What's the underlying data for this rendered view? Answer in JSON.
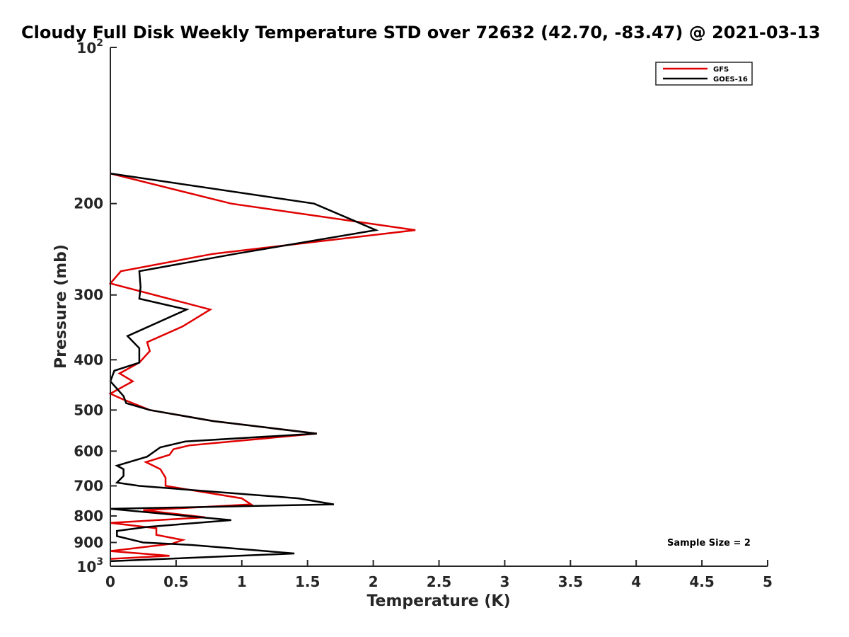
{
  "chart_data": {
    "type": "line",
    "title": "Cloudy Full Disk Weekly Temperature STD over 72632 (42.70, -83.47) @ 2021-03-13",
    "xlabel": "Temperature (K)",
    "ylabel": "Pressure (mb)",
    "xlim": [
      0,
      5
    ],
    "ylim": [
      100,
      1000
    ],
    "yscale": "log",
    "yreversed": true,
    "grid": false,
    "legend_position": "top-right",
    "x_ticks": [
      "0",
      "0.5",
      "1",
      "1.5",
      "2",
      "2.5",
      "3",
      "3.5",
      "4",
      "4.5",
      "5"
    ],
    "y_ticks": [
      {
        "value": 100,
        "base": "10",
        "exp": "2"
      },
      {
        "value": 200,
        "label": "200"
      },
      {
        "value": 300,
        "label": "300"
      },
      {
        "value": 400,
        "label": "400"
      },
      {
        "value": 500,
        "label": "500"
      },
      {
        "value": 600,
        "label": "600"
      },
      {
        "value": 700,
        "label": "700"
      },
      {
        "value": 800,
        "label": "800"
      },
      {
        "value": 900,
        "label": "900"
      },
      {
        "value": 1000,
        "base": "10",
        "exp": "3"
      }
    ],
    "annotation": "Sample Size = 2",
    "series": [
      {
        "name": "GFS",
        "color": "#e00000",
        "points": [
          [
            0.0,
            175
          ],
          [
            0.92,
            200
          ],
          [
            2.32,
            225
          ],
          [
            0.78,
            250
          ],
          [
            0.08,
            270
          ],
          [
            0.0,
            285
          ],
          [
            0.76,
            320
          ],
          [
            0.55,
            345
          ],
          [
            0.28,
            370
          ],
          [
            0.3,
            385
          ],
          [
            0.22,
            405
          ],
          [
            0.07,
            425
          ],
          [
            0.17,
            440
          ],
          [
            0.0,
            465
          ],
          [
            0.08,
            475
          ],
          [
            0.3,
            500
          ],
          [
            0.78,
            525
          ],
          [
            1.57,
            555
          ],
          [
            0.6,
            585
          ],
          [
            0.48,
            595
          ],
          [
            0.45,
            610
          ],
          [
            0.27,
            630
          ],
          [
            0.38,
            650
          ],
          [
            0.42,
            675
          ],
          [
            0.42,
            700
          ],
          [
            1.0,
            740
          ],
          [
            1.07,
            760
          ],
          [
            0.25,
            780
          ],
          [
            0.72,
            805
          ],
          [
            0.0,
            825
          ],
          [
            0.35,
            845
          ],
          [
            0.35,
            870
          ],
          [
            0.55,
            890
          ],
          [
            0.47,
            905
          ],
          [
            0.0,
            935
          ],
          [
            0.45,
            955
          ],
          [
            0.0,
            968
          ]
        ]
      },
      {
        "name": "GOES-16",
        "color": "#000000",
        "points": [
          [
            0.0,
            175
          ],
          [
            1.55,
            200
          ],
          [
            2.02,
            225
          ],
          [
            0.95,
            250
          ],
          [
            0.22,
            270
          ],
          [
            0.23,
            290
          ],
          [
            0.22,
            305
          ],
          [
            0.58,
            320
          ],
          [
            0.13,
            360
          ],
          [
            0.22,
            380
          ],
          [
            0.22,
            405
          ],
          [
            0.03,
            420
          ],
          [
            0.0,
            440
          ],
          [
            0.1,
            470
          ],
          [
            0.12,
            485
          ],
          [
            0.3,
            500
          ],
          [
            0.78,
            525
          ],
          [
            1.57,
            555
          ],
          [
            0.57,
            575
          ],
          [
            0.38,
            590
          ],
          [
            0.28,
            615
          ],
          [
            0.05,
            640
          ],
          [
            0.1,
            650
          ],
          [
            0.1,
            670
          ],
          [
            0.05,
            690
          ],
          [
            0.22,
            700
          ],
          [
            1.43,
            740
          ],
          [
            1.7,
            760
          ],
          [
            0.0,
            775
          ],
          [
            0.92,
            815
          ],
          [
            0.28,
            840
          ],
          [
            0.05,
            855
          ],
          [
            0.05,
            875
          ],
          [
            0.25,
            900
          ],
          [
            0.62,
            910
          ],
          [
            1.4,
            945
          ],
          [
            0.0,
            978
          ]
        ]
      }
    ]
  }
}
